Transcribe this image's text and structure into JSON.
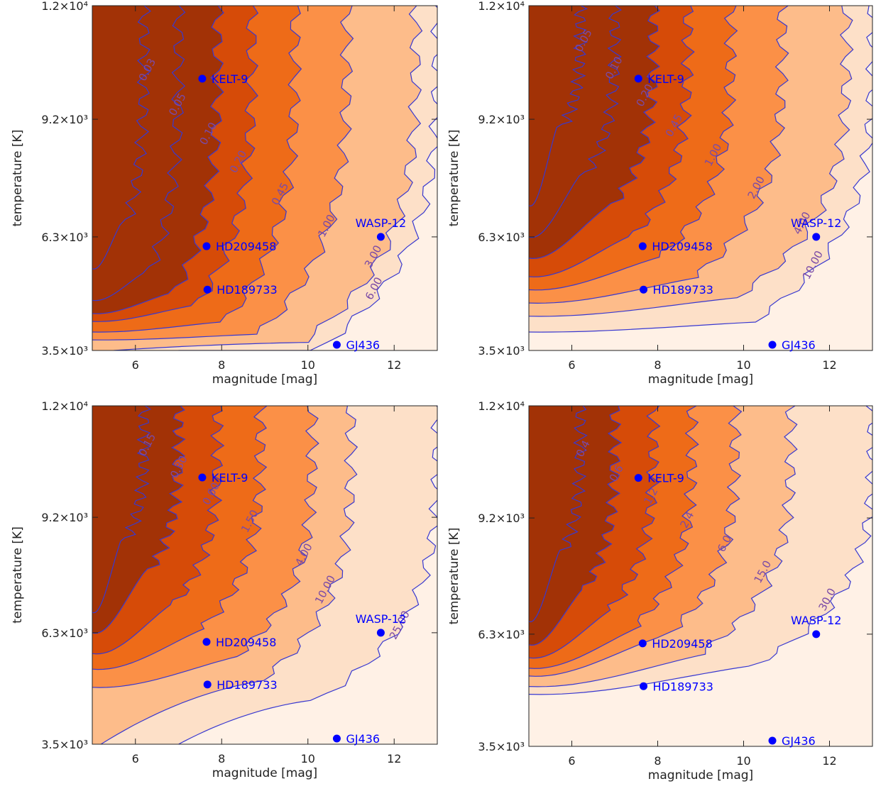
{
  "colors": {
    "levels": [
      "#a23206",
      "#d64b08",
      "#ee6b18",
      "#fb9047",
      "#fdbc8a",
      "#fde0c8",
      "#fff1e6"
    ],
    "contour_line": "#3838d0",
    "planet_marker": "#0000ff",
    "contour_label": "#7a4aa6",
    "axis": "#222222"
  },
  "chart_data": [
    {
      "type": "contour",
      "xlabel": "magnitude [mag]",
      "ylabel": "temperature [K]",
      "xlim": [
        5,
        13
      ],
      "ylim": [
        3500,
        12000
      ],
      "xticks": [
        6,
        8,
        10,
        12
      ],
      "yticks": [
        {
          "value": 3500,
          "label": "3.5×10³"
        },
        {
          "value": 6300,
          "label": "6.3×10³"
        },
        {
          "value": 9200,
          "label": "9.2×10³"
        },
        {
          "value": 12000,
          "label": "1.2×10⁴"
        }
      ],
      "planets": [
        {
          "name": "KELT-9",
          "mag": 7.55,
          "temp": 10200
        },
        {
          "name": "HD209458",
          "mag": 7.65,
          "temp": 6070
        },
        {
          "name": "HD189733",
          "mag": 7.67,
          "temp": 5000
        },
        {
          "name": "WASP-12",
          "mag": 11.69,
          "temp": 6300
        },
        {
          "name": "GJ436",
          "mag": 10.67,
          "temp": 3500
        }
      ],
      "contours": [
        {
          "value": 0.03,
          "label": "0.03",
          "mag_top": 6.2,
          "temp_knee": 6600,
          "mag_bottom": 5.0
        },
        {
          "value": 0.05,
          "label": "0.05",
          "mag_top": 7.0,
          "temp_knee": 5400,
          "mag_bottom": 5.0
        },
        {
          "value": 0.1,
          "label": "0.10",
          "mag_top": 7.9,
          "temp_knee": 4900,
          "mag_bottom": 5.0
        },
        {
          "value": 0.2,
          "label": "0.20",
          "mag_top": 8.7,
          "temp_knee": 4600,
          "mag_bottom": 5.0
        },
        {
          "value": 0.45,
          "label": "0.45",
          "mag_top": 9.7,
          "temp_knee": 4200,
          "mag_bottom": 5.0
        },
        {
          "value": 1.0,
          "label": "1.00",
          "mag_top": 10.9,
          "temp_knee": 3900,
          "mag_bottom": 5.0
        },
        {
          "value": 3.0,
          "label": "3.00",
          "mag_top": 12.5,
          "temp_knee": 3700,
          "mag_bottom": 5.5
        },
        {
          "value": 6.0,
          "label": "6.00",
          "mag_top": 13.0,
          "temp_knee": 3500,
          "mag_bottom": 7.0
        }
      ]
    },
    {
      "type": "contour",
      "xlabel": "magnitude [mag]",
      "ylabel": "temperature [K]",
      "xlim": [
        5,
        13
      ],
      "ylim": [
        3500,
        12000
      ],
      "xticks": [
        6,
        8,
        10,
        12
      ],
      "yticks": [
        {
          "value": 3500,
          "label": "3.5×10³"
        },
        {
          "value": 6300,
          "label": "6.3×10³"
        },
        {
          "value": 9200,
          "label": "9.2×10³"
        },
        {
          "value": 12000,
          "label": "1.2×10⁴"
        }
      ],
      "planets": [
        {
          "name": "KELT-9",
          "mag": 7.55,
          "temp": 10200
        },
        {
          "name": "HD209458",
          "mag": 7.65,
          "temp": 6070
        },
        {
          "name": "HD189733",
          "mag": 7.67,
          "temp": 5000
        },
        {
          "name": "WASP-12",
          "mag": 11.69,
          "temp": 6300
        },
        {
          "name": "GJ436",
          "mag": 10.67,
          "temp": 3500
        }
      ],
      "contours": [
        {
          "value": 0.05,
          "label": "0.05",
          "mag_top": 6.2,
          "temp_knee": 9000,
          "mag_bottom": 5.0
        },
        {
          "value": 0.1,
          "label": "0.10",
          "mag_top": 7.0,
          "temp_knee": 7800,
          "mag_bottom": 5.0
        },
        {
          "value": 0.2,
          "label": "0.20",
          "mag_top": 7.9,
          "temp_knee": 7000,
          "mag_bottom": 5.0
        },
        {
          "value": 0.45,
          "label": "0.45",
          "mag_top": 8.7,
          "temp_knee": 6300,
          "mag_bottom": 5.0
        },
        {
          "value": 1.0,
          "label": "1.00",
          "mag_top": 9.7,
          "temp_knee": 5800,
          "mag_bottom": 5.0
        },
        {
          "value": 2.0,
          "label": "2.00",
          "mag_top": 10.9,
          "temp_knee": 5300,
          "mag_bottom": 5.0
        },
        {
          "value": 4.0,
          "label": "4.00",
          "mag_top": 12.4,
          "temp_knee": 4800,
          "mag_bottom": 5.0
        },
        {
          "value": 10.0,
          "label": "10.00",
          "mag_top": 13.0,
          "temp_knee": 4200,
          "mag_bottom": 5.0
        }
      ]
    },
    {
      "type": "contour",
      "xlabel": "magnitude [mag]",
      "ylabel": "temperature [K]",
      "xlim": [
        5,
        13
      ],
      "ylim": [
        3500,
        12000
      ],
      "xticks": [
        6,
        8,
        10,
        12
      ],
      "yticks": [
        {
          "value": 3500,
          "label": "3.5×10³"
        },
        {
          "value": 6300,
          "label": "6.3×10³"
        },
        {
          "value": 9200,
          "label": "9.2×10³"
        },
        {
          "value": 12000,
          "label": "1.2×10⁴"
        }
      ],
      "planets": [
        {
          "name": "KELT-9",
          "mag": 7.55,
          "temp": 10200
        },
        {
          "name": "HD209458",
          "mag": 7.65,
          "temp": 6070
        },
        {
          "name": "HD189733",
          "mag": 7.67,
          "temp": 5000
        },
        {
          "name": "WASP-12",
          "mag": 11.69,
          "temp": 6300
        },
        {
          "name": "GJ436",
          "mag": 10.67,
          "temp": 3500
        }
      ],
      "contours": [
        {
          "value": 0.15,
          "label": "0.15",
          "mag_top": 6.2,
          "temp_knee": 8600,
          "mag_bottom": 5.0
        },
        {
          "value": 0.3,
          "label": "0.30",
          "mag_top": 7.0,
          "temp_knee": 7800,
          "mag_bottom": 5.0
        },
        {
          "value": 0.6,
          "label": "0.60",
          "mag_top": 7.9,
          "temp_knee": 7000,
          "mag_bottom": 5.0
        },
        {
          "value": 1.5,
          "label": "1.50",
          "mag_top": 8.9,
          "temp_knee": 6400,
          "mag_bottom": 5.0
        },
        {
          "value": 4.0,
          "label": "4.00",
          "mag_top": 10.1,
          "temp_knee": 5700,
          "mag_bottom": 5.0
        },
        {
          "value": 10.0,
          "label": "10.00",
          "mag_top": 11.0,
          "temp_knee": 5100,
          "mag_bottom": 5.2
        },
        {
          "value": 25.0,
          "label": "25.00",
          "mag_top": 13.0,
          "temp_knee": 4600,
          "mag_bottom": 7.0
        }
      ]
    },
    {
      "type": "contour",
      "xlabel": "magnitude [mag]",
      "ylabel": "temperature [K]",
      "xlim": [
        5,
        13
      ],
      "ylim": [
        3500,
        12000
      ],
      "xticks": [
        6,
        8,
        10,
        12
      ],
      "yticks": [
        {
          "value": 3500,
          "label": "3.5×10³"
        },
        {
          "value": 6300,
          "label": "6.3×10³"
        },
        {
          "value": 9200,
          "label": "9.2×10³"
        },
        {
          "value": 12000,
          "label": "1.2×10⁴"
        }
      ],
      "planets": [
        {
          "name": "KELT-9",
          "mag": 7.55,
          "temp": 10200
        },
        {
          "name": "HD209458",
          "mag": 7.65,
          "temp": 6070
        },
        {
          "name": "HD189733",
          "mag": 7.67,
          "temp": 5000
        },
        {
          "name": "WASP-12",
          "mag": 11.69,
          "temp": 6300
        },
        {
          "name": "GJ436",
          "mag": 10.67,
          "temp": 3500
        }
      ],
      "contours": [
        {
          "value": 0.4,
          "label": "0.4",
          "mag_top": 6.2,
          "temp_knee": 8300,
          "mag_bottom": 5.0
        },
        {
          "value": 0.6,
          "label": "0.6",
          "mag_top": 7.0,
          "temp_knee": 7400,
          "mag_bottom": 5.0
        },
        {
          "value": 1.2,
          "label": "1.2",
          "mag_top": 7.9,
          "temp_knee": 6900,
          "mag_bottom": 5.0
        },
        {
          "value": 2.4,
          "label": "2.4",
          "mag_top": 8.8,
          "temp_knee": 6500,
          "mag_bottom": 5.0
        },
        {
          "value": 6.0,
          "label": "6.0",
          "mag_top": 9.8,
          "temp_knee": 6200,
          "mag_bottom": 5.0
        },
        {
          "value": 15.0,
          "label": "15.0",
          "mag_top": 11.1,
          "temp_knee": 5800,
          "mag_bottom": 5.0
        },
        {
          "value": 30.0,
          "label": "30.0",
          "mag_top": 13.0,
          "temp_knee": 5500,
          "mag_bottom": 5.0
        }
      ]
    }
  ]
}
